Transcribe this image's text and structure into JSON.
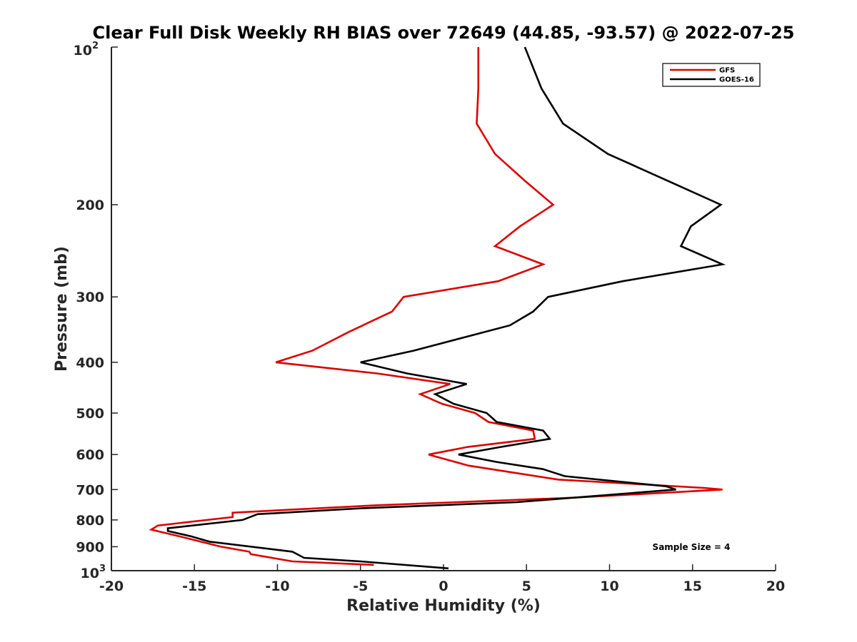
{
  "chart_data": {
    "type": "line",
    "title": "Clear Full Disk Weekly RH BIAS over 72649 (44.85, -93.57) @ 2022-07-25",
    "xlabel": "Relative Humidity (%)",
    "ylabel": "Pressure (mb)",
    "xlim": [
      -20,
      20
    ],
    "ylim": [
      100,
      1000
    ],
    "y_scale": "log",
    "y_reversed": true,
    "x_ticks": [
      -20,
      -15,
      -10,
      -5,
      0,
      5,
      10,
      15,
      20
    ],
    "x_tick_labels": [
      "-20",
      "-15",
      "-10",
      "-5",
      "0",
      "5",
      "10",
      "15",
      "20"
    ],
    "y_ticks": [
      200,
      300,
      400,
      500,
      600,
      700,
      800,
      900
    ],
    "y_tick_labels": [
      "200",
      "300",
      "400",
      "500",
      "600",
      "700",
      "800",
      "900"
    ],
    "y_end_labels": {
      "top": {
        "base": "10",
        "exponent": "2",
        "value": 100
      },
      "bottom": {
        "base": "10",
        "exponent": "3",
        "value": 1000
      }
    },
    "grid": false,
    "legend_position": "top-right",
    "annotation": "Sample Size = 4",
    "series": [
      {
        "name": "GFS",
        "color": "#dd0000",
        "points": [
          [
            2.1,
            100
          ],
          [
            2.1,
            120
          ],
          [
            2.0,
            140
          ],
          [
            3.1,
            160
          ],
          [
            4.9,
            180
          ],
          [
            6.6,
            200
          ],
          [
            4.6,
            220
          ],
          [
            3.1,
            240
          ],
          [
            6.0,
            260
          ],
          [
            3.3,
            280
          ],
          [
            -2.4,
            300
          ],
          [
            -3.1,
            320
          ],
          [
            -5.7,
            350
          ],
          [
            -7.9,
            380
          ],
          [
            -10.1,
            400
          ],
          [
            -4.0,
            420
          ],
          [
            0.4,
            440
          ],
          [
            -1.4,
            460
          ],
          [
            -0.1,
            480
          ],
          [
            1.9,
            500
          ],
          [
            2.7,
            520
          ],
          [
            5.4,
            540
          ],
          [
            5.5,
            560
          ],
          [
            1.5,
            580
          ],
          [
            -0.9,
            600
          ],
          [
            1.5,
            630
          ],
          [
            6.9,
            670
          ],
          [
            15.7,
            695
          ],
          [
            16.8,
            700
          ],
          [
            8.0,
            725
          ],
          [
            -4.0,
            750
          ],
          [
            -12.7,
            775
          ],
          [
            -12.7,
            790
          ],
          [
            -17.2,
            820
          ],
          [
            -17.6,
            835
          ],
          [
            -15.9,
            860
          ],
          [
            -13.4,
            900
          ],
          [
            -11.7,
            920
          ],
          [
            -11.6,
            930
          ],
          [
            -9.1,
            960
          ],
          [
            -4.2,
            975
          ]
        ]
      },
      {
        "name": "GOES-16",
        "color": "#000000",
        "points": [
          [
            4.9,
            100
          ],
          [
            5.9,
            120
          ],
          [
            7.2,
            140
          ],
          [
            9.9,
            160
          ],
          [
            13.5,
            180
          ],
          [
            16.7,
            200
          ],
          [
            14.9,
            220
          ],
          [
            14.3,
            240
          ],
          [
            16.8,
            260
          ],
          [
            10.8,
            280
          ],
          [
            6.3,
            300
          ],
          [
            5.4,
            320
          ],
          [
            4.0,
            340
          ],
          [
            -1.8,
            380
          ],
          [
            -5.0,
            400
          ],
          [
            -2.2,
            420
          ],
          [
            1.4,
            440
          ],
          [
            -0.5,
            460
          ],
          [
            0.6,
            480
          ],
          [
            2.6,
            500
          ],
          [
            3.2,
            520
          ],
          [
            6.0,
            540
          ],
          [
            6.4,
            560
          ],
          [
            3.5,
            580
          ],
          [
            0.9,
            600
          ],
          [
            3.2,
            620
          ],
          [
            6.0,
            640
          ],
          [
            7.3,
            660
          ],
          [
            13.4,
            690
          ],
          [
            14.0,
            700
          ],
          [
            4.4,
            740
          ],
          [
            -4.9,
            760
          ],
          [
            -11.2,
            780
          ],
          [
            -12.1,
            800
          ],
          [
            -16.6,
            830
          ],
          [
            -16.6,
            840
          ],
          [
            -15.2,
            860
          ],
          [
            -14.1,
            880
          ],
          [
            -9.1,
            920
          ],
          [
            -8.4,
            945
          ],
          [
            -5.0,
            960
          ],
          [
            0.3,
            990
          ]
        ]
      }
    ]
  }
}
